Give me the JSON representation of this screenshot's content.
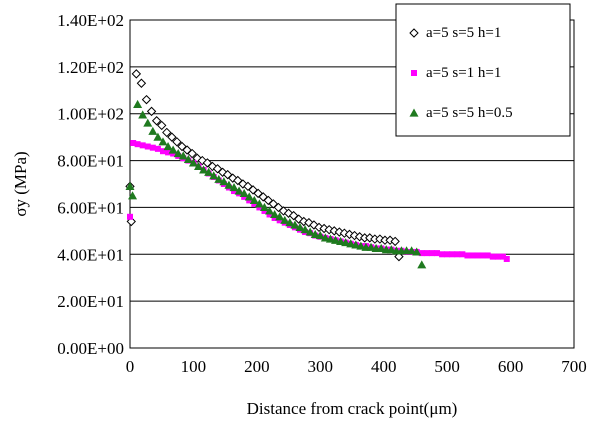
{
  "chart_data": {
    "type": "scatter",
    "title": "",
    "xlabel": "Distance from crack point(μm)",
    "ylabel": "σy (MPa)",
    "xlim": [
      0,
      700
    ],
    "ylim": [
      0,
      140
    ],
    "x_ticks": [
      0,
      100,
      200,
      300,
      400,
      500,
      600,
      700
    ],
    "y_ticks": [
      0,
      20,
      40,
      60,
      80,
      100,
      120,
      140
    ],
    "x_tick_labels": [
      "0",
      "100",
      "200",
      "300",
      "400",
      "500",
      "600",
      "700"
    ],
    "y_tick_labels": [
      "0.00E+00",
      "2.00E+01",
      "4.00E+01",
      "6.00E+01",
      "8.00E+01",
      "1.00E+02",
      "1.20E+02",
      "1.40E+02"
    ],
    "grid": "horizontal",
    "legend_position": "top-right",
    "series": [
      {
        "name": "a=5 s=5 h=1",
        "marker": "diamond-open",
        "color": "#000000",
        "points": [
          [
            0,
            69
          ],
          [
            2,
            54
          ],
          [
            10,
            117
          ],
          [
            18,
            113
          ],
          [
            26,
            106
          ],
          [
            34,
            101
          ],
          [
            42,
            97
          ],
          [
            50,
            95
          ],
          [
            58,
            92
          ],
          [
            66,
            90
          ],
          [
            74,
            88
          ],
          [
            82,
            86
          ],
          [
            90,
            84.5
          ],
          [
            98,
            83
          ],
          [
            106,
            81
          ],
          [
            114,
            80
          ],
          [
            122,
            79
          ],
          [
            130,
            77.5
          ],
          [
            138,
            76.5
          ],
          [
            146,
            75
          ],
          [
            154,
            74
          ],
          [
            162,
            72.5
          ],
          [
            170,
            71.5
          ],
          [
            178,
            70
          ],
          [
            186,
            69
          ],
          [
            194,
            67.5
          ],
          [
            202,
            66
          ],
          [
            210,
            64.5
          ],
          [
            218,
            63
          ],
          [
            226,
            61.5
          ],
          [
            234,
            60
          ],
          [
            242,
            58.5
          ],
          [
            250,
            57.5
          ],
          [
            258,
            56.5
          ],
          [
            266,
            55
          ],
          [
            274,
            54
          ],
          [
            282,
            53.5
          ],
          [
            290,
            52.5
          ],
          [
            298,
            51.5
          ],
          [
            306,
            51
          ],
          [
            314,
            50.5
          ],
          [
            322,
            50
          ],
          [
            330,
            49.5
          ],
          [
            338,
            49
          ],
          [
            346,
            48.5
          ],
          [
            354,
            48
          ],
          [
            362,
            47.5
          ],
          [
            370,
            47
          ],
          [
            378,
            47
          ],
          [
            386,
            46.5
          ],
          [
            394,
            46.5
          ],
          [
            402,
            46
          ],
          [
            410,
            46
          ],
          [
            418,
            45.5
          ],
          [
            424,
            39
          ]
        ]
      },
      {
        "name": "a=5 s=1 h=1",
        "marker": "square",
        "color": "#ff00ff",
        "points": [
          [
            0,
            56
          ],
          [
            5,
            87.5
          ],
          [
            12,
            87
          ],
          [
            20,
            86.5
          ],
          [
            28,
            86
          ],
          [
            36,
            85.5
          ],
          [
            44,
            85
          ],
          [
            52,
            84
          ],
          [
            60,
            83.5
          ],
          [
            68,
            83
          ],
          [
            76,
            82
          ],
          [
            84,
            81
          ],
          [
            92,
            80
          ],
          [
            100,
            79
          ],
          [
            108,
            77.5
          ],
          [
            116,
            76
          ],
          [
            124,
            74.5
          ],
          [
            132,
            73
          ],
          [
            140,
            71.5
          ],
          [
            148,
            70
          ],
          [
            156,
            68.5
          ],
          [
            164,
            67
          ],
          [
            172,
            66
          ],
          [
            180,
            64.5
          ],
          [
            188,
            63
          ],
          [
            196,
            61.5
          ],
          [
            204,
            60
          ],
          [
            212,
            58.5
          ],
          [
            220,
            57
          ],
          [
            228,
            55.5
          ],
          [
            236,
            54.5
          ],
          [
            244,
            53.5
          ],
          [
            252,
            52.5
          ],
          [
            260,
            51.5
          ],
          [
            268,
            50.5
          ],
          [
            276,
            49.5
          ],
          [
            284,
            49
          ],
          [
            292,
            48
          ],
          [
            300,
            47.5
          ],
          [
            308,
            47
          ],
          [
            316,
            46.5
          ],
          [
            324,
            46
          ],
          [
            332,
            45.5
          ],
          [
            340,
            45
          ],
          [
            348,
            44.5
          ],
          [
            356,
            44
          ],
          [
            364,
            43.5
          ],
          [
            372,
            43.5
          ],
          [
            380,
            43
          ],
          [
            388,
            42.5
          ],
          [
            396,
            42.5
          ],
          [
            404,
            42
          ],
          [
            412,
            42
          ],
          [
            420,
            41.5
          ],
          [
            428,
            41.5
          ],
          [
            436,
            41
          ],
          [
            444,
            41
          ],
          [
            452,
            41
          ],
          [
            460,
            40.5
          ],
          [
            468,
            40.5
          ],
          [
            476,
            40.5
          ],
          [
            484,
            40.5
          ],
          [
            492,
            40
          ],
          [
            500,
            40
          ],
          [
            508,
            40
          ],
          [
            516,
            40
          ],
          [
            524,
            40
          ],
          [
            532,
            39.5
          ],
          [
            540,
            39.5
          ],
          [
            548,
            39.5
          ],
          [
            556,
            39.5
          ],
          [
            564,
            39.5
          ],
          [
            572,
            39
          ],
          [
            580,
            39
          ],
          [
            588,
            39
          ],
          [
            594,
            38
          ]
        ]
      },
      {
        "name": "a=5 s=5 h=0.5",
        "marker": "triangle",
        "color": "#1f7a1f",
        "points": [
          [
            0,
            69
          ],
          [
            4,
            65
          ],
          [
            12,
            104
          ],
          [
            20,
            99.5
          ],
          [
            28,
            96
          ],
          [
            36,
            92.5
          ],
          [
            44,
            90
          ],
          [
            52,
            88
          ],
          [
            60,
            86
          ],
          [
            68,
            84.5
          ],
          [
            76,
            83
          ],
          [
            84,
            82
          ],
          [
            92,
            80.5
          ],
          [
            100,
            79
          ],
          [
            108,
            77.5
          ],
          [
            116,
            76
          ],
          [
            124,
            75
          ],
          [
            132,
            73.5
          ],
          [
            140,
            72
          ],
          [
            148,
            71
          ],
          [
            156,
            69.5
          ],
          [
            164,
            68.5
          ],
          [
            172,
            67
          ],
          [
            180,
            66
          ],
          [
            188,
            64.5
          ],
          [
            196,
            63
          ],
          [
            204,
            61.5
          ],
          [
            212,
            60
          ],
          [
            220,
            58.5
          ],
          [
            228,
            57
          ],
          [
            236,
            56
          ],
          [
            244,
            54.5
          ],
          [
            252,
            53.5
          ],
          [
            260,
            52.5
          ],
          [
            268,
            51.5
          ],
          [
            276,
            50.5
          ],
          [
            284,
            49.5
          ],
          [
            292,
            48.5
          ],
          [
            300,
            48
          ],
          [
            308,
            47
          ],
          [
            316,
            46.5
          ],
          [
            324,
            46
          ],
          [
            332,
            45.5
          ],
          [
            340,
            45
          ],
          [
            348,
            44.5
          ],
          [
            356,
            44
          ],
          [
            364,
            43.5
          ],
          [
            372,
            43
          ],
          [
            380,
            43
          ],
          [
            388,
            42.5
          ],
          [
            396,
            42.5
          ],
          [
            404,
            42
          ],
          [
            412,
            42
          ],
          [
            420,
            41.5
          ],
          [
            428,
            41.5
          ],
          [
            436,
            41.5
          ],
          [
            444,
            41.5
          ],
          [
            452,
            41
          ],
          [
            460,
            35.5
          ]
        ]
      }
    ]
  }
}
